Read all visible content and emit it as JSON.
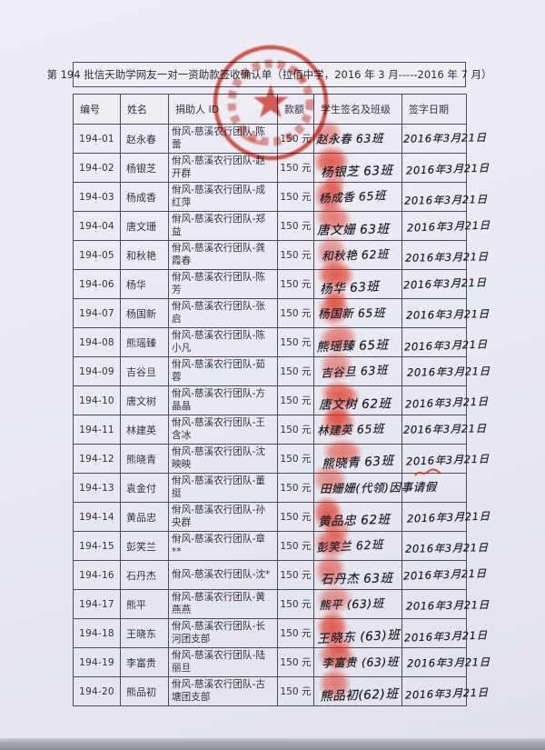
{
  "page": {
    "title": "第 194 批信天助学网友一对一资助款签收确认单（拉佰中学，2016 年 3 月-----2016 年 7 月）"
  },
  "stamp": {
    "type": "round-official-seal-with-star",
    "color": "#d6281a"
  },
  "colors": {
    "paper": "#e9eaf2",
    "border": "#4d4d58",
    "ink_print": "#33333e",
    "ink_hand": "#1e1f28",
    "stamp_red": "#d6281a"
  },
  "table": {
    "headers": [
      "编号",
      "姓名",
      "捐助人 ID",
      "款额",
      "学生签名及班级",
      "签字日期"
    ],
    "rows": [
      {
        "no": "194-01",
        "name": "赵永春",
        "donor": "佾风-慈溪农行团队-陈蕾",
        "amount": "150 元",
        "signature": "赵永春 63班",
        "date": "2016年3月21日"
      },
      {
        "no": "194-02",
        "name": "杨银芝",
        "donor": "佾风-慈溪农行团队-赵开群",
        "amount": "150 元",
        "signature": "杨银芝 63班",
        "date": "2016年3月21日"
      },
      {
        "no": "194-03",
        "name": "杨成香",
        "donor": "佾风-慈溪农行团队-成红萍",
        "amount": "150 元",
        "signature": "杨成香 65班",
        "date": "2016年3月21日"
      },
      {
        "no": "194-04",
        "name": "唐文珊",
        "donor": "佾风-慈溪农行团队-郑益",
        "amount": "150 元",
        "signature": "唐文姗 63班",
        "date": "2016年3月21日"
      },
      {
        "no": "194-05",
        "name": "和秋艳",
        "donor": "佾风-慈溪农行团队-龚霞春",
        "amount": "150 元",
        "signature": "和秋艳 62班",
        "date": "2016年3月21日"
      },
      {
        "no": "194-06",
        "name": "杨华",
        "donor": "佾风-慈溪农行团队-陈芳",
        "amount": "150 元",
        "signature": "杨华 63班",
        "date": "2016年3月21日"
      },
      {
        "no": "194-07",
        "name": "杨国新",
        "donor": "佾风-慈溪农行团队-张启",
        "amount": "150 元",
        "signature": "杨国新 65班",
        "date": "2016年3月21日"
      },
      {
        "no": "194-08",
        "name": "熊瑶臻",
        "donor": "佾风-慈溪农行团队-陈小凡",
        "amount": "150 元",
        "signature": "熊瑶臻 65班",
        "date": "2016年3月21日"
      },
      {
        "no": "194-09",
        "name": "吉谷旦",
        "donor": "佾风-慈溪农行团队-茹蓉",
        "amount": "150 元",
        "signature": "吉谷旦 63班",
        "date": "2016年3月21日"
      },
      {
        "no": "194-10",
        "name": "唐文树",
        "donor": "佾风-慈溪农行团队-方晶晶",
        "amount": "150 元",
        "signature": "唐文树 62班",
        "date": "2016年3月21日"
      },
      {
        "no": "194-11",
        "name": "林建英",
        "donor": "佾风-慈溪农行团队-王含冰",
        "amount": "150 元",
        "signature": "林建英 65班",
        "date": "2016年3月21日"
      },
      {
        "no": "194-12",
        "name": "熊晓青",
        "donor": "佾风-慈溪农行团队-沈映映",
        "amount": "150 元",
        "signature": "熊晓青 63班",
        "date": "2016年3月21日"
      },
      {
        "no": "194-13",
        "name": "袁金付",
        "donor": "佾风-慈溪农行团队-董挺",
        "amount": "150 元",
        "signature": "田姗姗(代领)因事请假",
        "date": ""
      },
      {
        "no": "194-14",
        "name": "黄品忠",
        "donor": "佾风-慈溪农行团队-孙央群",
        "amount": "150 元",
        "signature": "黄品忠 62班",
        "date": "2016年3月21日"
      },
      {
        "no": "194-15",
        "name": "彭笑兰",
        "donor": "佾风-慈溪农行团队-章**",
        "amount": "150 元",
        "signature": "彭笑兰 62班",
        "date": "2016年3月21日"
      },
      {
        "no": "194-16",
        "name": "石丹杰",
        "donor": "佾风-慈溪农行团队-沈*",
        "amount": "150 元",
        "signature": "石丹杰 63班",
        "date": "2016年3月21日"
      },
      {
        "no": "194-17",
        "name": "熊平",
        "donor": "佾风-慈溪农行团队-黄燕燕",
        "amount": "150 元",
        "signature": "熊平 (63)班",
        "date": "2016年3月21日"
      },
      {
        "no": "194-18",
        "name": "王晓东",
        "donor": "佾风-慈溪农行团队-长河团支部",
        "amount": "150 元",
        "signature": "王晓东 (63)班",
        "date": "2016年3月21日"
      },
      {
        "no": "194-19",
        "name": "李富贵",
        "donor": "佾风-慈溪农行团队-陆丽旦",
        "amount": "150 元",
        "signature": "李富贵 (63)班",
        "date": "2016年3月21日"
      },
      {
        "no": "194-20",
        "name": "熊品初",
        "donor": "佾风-慈溪农行团队-古塘团支部",
        "amount": "150 元",
        "signature": "熊品初(62)班",
        "date": "2016年3月21日"
      }
    ]
  }
}
